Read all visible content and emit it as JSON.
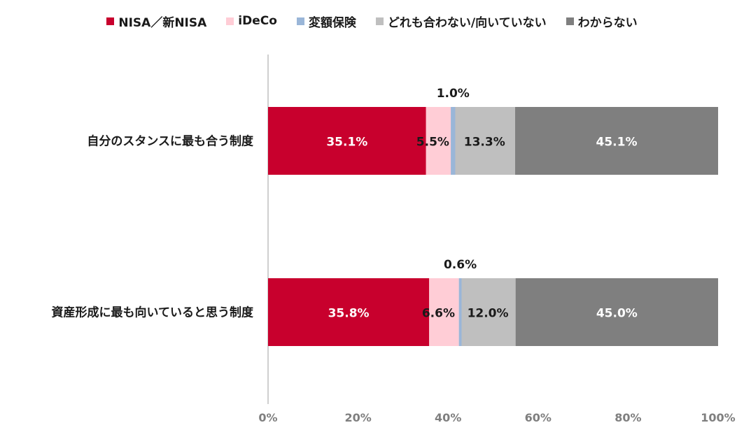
{
  "chart_data": {
    "type": "bar",
    "orientation": "horizontal",
    "stacked": "percent",
    "categories": [
      "自分のスタンスに最も合う制度",
      "資産形成に最も向いていると思う制度"
    ],
    "series": [
      {
        "name": "NISA／新NISA",
        "color": "#c8002d",
        "values": [
          35.1,
          35.8
        ],
        "labels": [
          "35.1%",
          "35.8%"
        ]
      },
      {
        "name": "iDeCo",
        "color": "#ffcdd6",
        "values": [
          5.5,
          6.6
        ],
        "labels": [
          "5.5%",
          "6.6%"
        ]
      },
      {
        "name": "変額保険",
        "color": "#9ab6d8",
        "values": [
          1.0,
          0.6
        ],
        "labels": [
          "1.0%",
          "0.6%"
        ]
      },
      {
        "name": "どれも合わない/向いていない",
        "color": "#bfbfbf",
        "values": [
          13.3,
          12.0
        ],
        "labels": [
          "13.3%",
          "12.0%"
        ]
      },
      {
        "name": "わからない",
        "color": "#7f7f7f",
        "values": [
          45.1,
          45.0
        ],
        "labels": [
          "45.1%",
          "45.0%"
        ]
      }
    ],
    "xlim": [
      0,
      100
    ],
    "xticks": [
      "0%",
      "20%",
      "40%",
      "60%",
      "80%",
      "100%"
    ],
    "legend": "top",
    "grid": false
  }
}
